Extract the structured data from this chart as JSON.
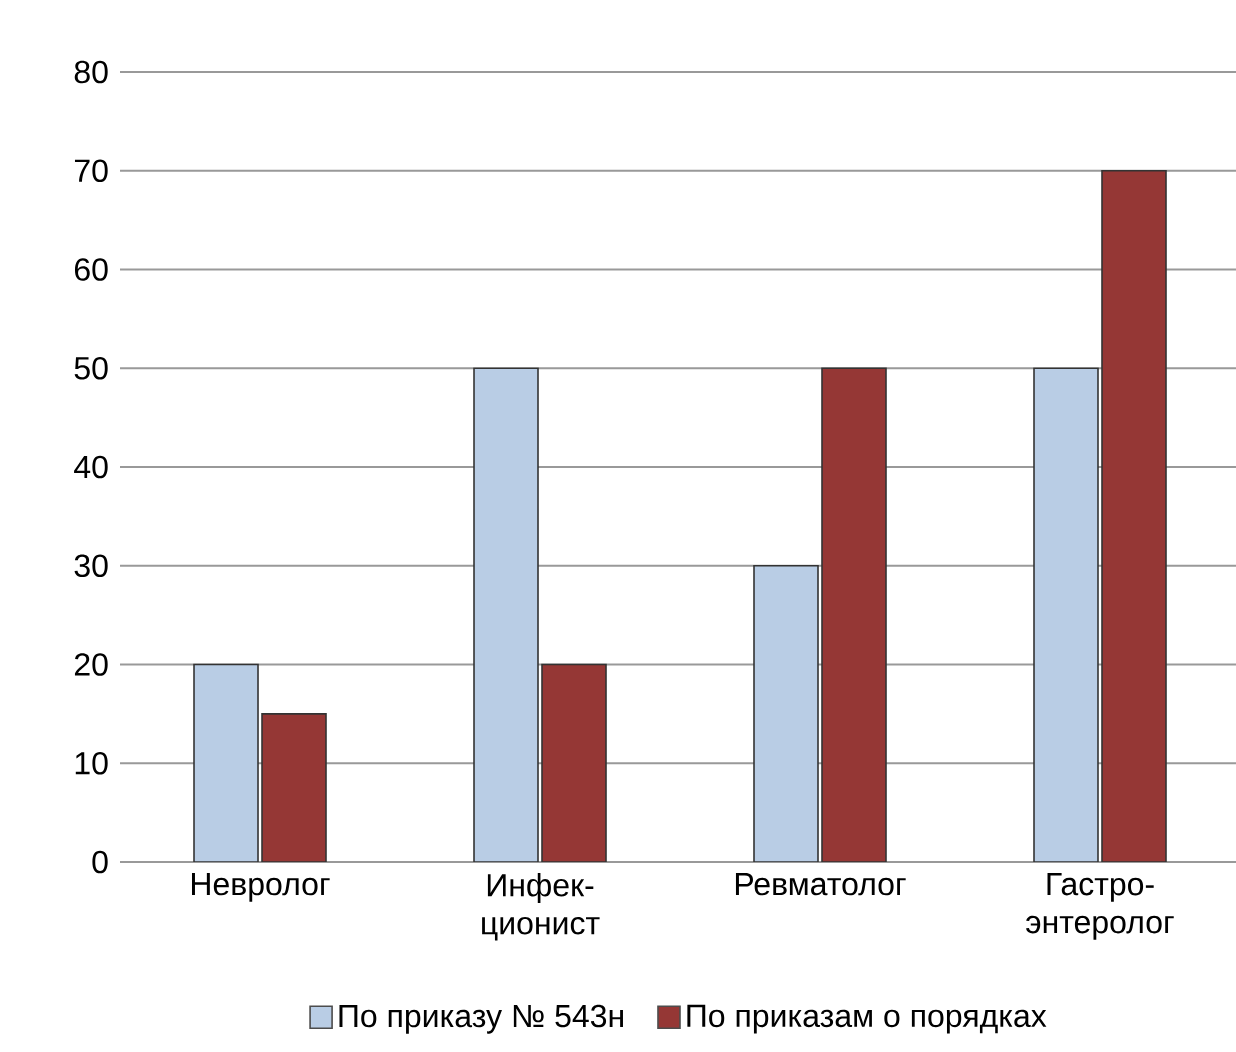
{
  "chart_data": {
    "type": "bar",
    "categories": [
      "Невролог",
      "Инфек-ционист",
      "Ревматолог",
      "Гастро-энтеролог"
    ],
    "series": [
      {
        "name": "По приказу № 543н",
        "color": "#b9cde5",
        "values": [
          20,
          50,
          30,
          50
        ]
      },
      {
        "name": "По приказам о порядках",
        "color": "#953735",
        "values": [
          15,
          20,
          50,
          70
        ]
      }
    ],
    "ylim": [
      0,
      80
    ],
    "yticks": [
      0,
      10,
      20,
      30,
      40,
      50,
      60,
      70,
      80
    ],
    "grid": "y",
    "legend": "bottom"
  }
}
